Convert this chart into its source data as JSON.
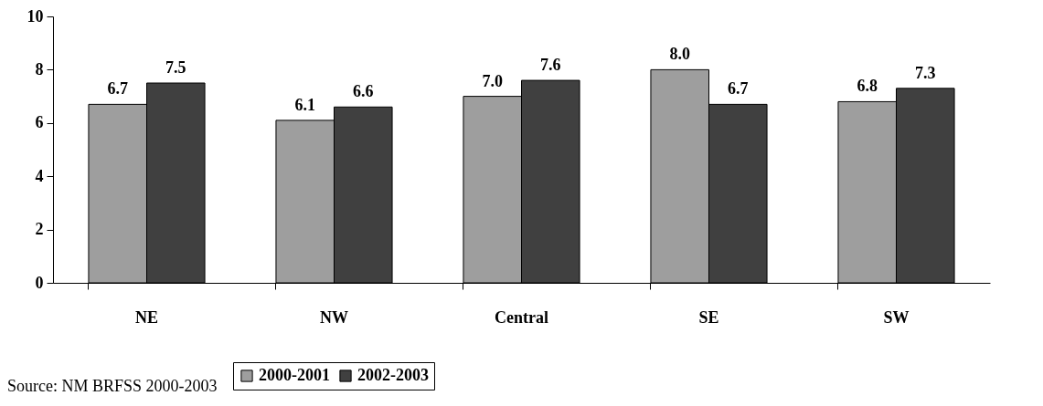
{
  "chart_data": {
    "type": "bar",
    "categories": [
      "NE",
      "NW",
      "Central",
      "SE",
      "SW"
    ],
    "series": [
      {
        "name": "2000-2001",
        "color": "#9e9e9e",
        "values": [
          6.7,
          6.1,
          7.0,
          8.0,
          6.8
        ],
        "value_labels": [
          "6.7",
          "6.1",
          "7.0",
          "8.0",
          "6.8"
        ]
      },
      {
        "name": "2002-2003",
        "color": "#404040",
        "values": [
          7.5,
          6.6,
          7.6,
          6.7,
          7.3
        ],
        "value_labels": [
          "7.5",
          "6.6",
          "7.6",
          "6.7",
          "7.3"
        ]
      }
    ],
    "ylim": [
      0,
      10
    ],
    "yticks": [
      0,
      2,
      4,
      6,
      8,
      10
    ],
    "legend": "bottom",
    "grid": false,
    "annotations": [
      "Source: NM BRFSS 2000-2003"
    ]
  }
}
